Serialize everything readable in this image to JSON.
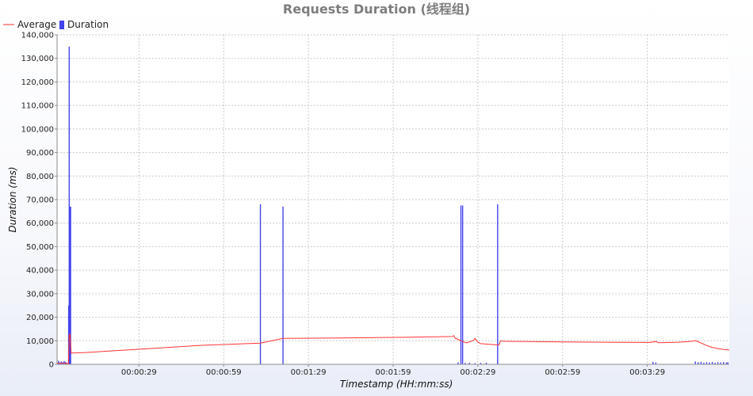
{
  "chart_data": {
    "type": "line",
    "title": "Requests Duration (线程组)",
    "xlabel": "Timestamp (HH:mm:ss)",
    "ylabel": "Duration (ms)",
    "x_ticks": [
      "00:00:29",
      "00:00:59",
      "00:01:29",
      "00:01:59",
      "00:02:29",
      "00:02:59",
      "00:03:29"
    ],
    "x_tick_seconds": [
      29,
      59,
      89,
      119,
      149,
      179,
      209
    ],
    "xlim_seconds": [
      0,
      238
    ],
    "ylim": [
      0,
      140000
    ],
    "y_ticks": [
      0,
      10000,
      20000,
      30000,
      40000,
      50000,
      60000,
      70000,
      80000,
      90000,
      100000,
      110000,
      120000,
      130000,
      140000
    ],
    "y_tick_labels": [
      "0",
      "10,000",
      "20,000",
      "30,000",
      "40,000",
      "50,000",
      "60,000",
      "70,000",
      "80,000",
      "90,000",
      "100,000",
      "110,000",
      "120,000",
      "130,000",
      "140,000"
    ],
    "grid": true,
    "legend_position": "top-left",
    "series": [
      {
        "name": "Average",
        "kind": "line",
        "color": "#ff3333",
        "points": [
          [
            0,
            500
          ],
          [
            3,
            400
          ],
          [
            4,
            300
          ],
          [
            4.3,
            12000
          ],
          [
            4.6,
            13000
          ],
          [
            5,
            4800
          ],
          [
            10,
            5000
          ],
          [
            30,
            6500
          ],
          [
            50,
            8000
          ],
          [
            72,
            9000
          ],
          [
            80,
            11000
          ],
          [
            100,
            11200
          ],
          [
            125,
            11500
          ],
          [
            140,
            11800
          ],
          [
            140.5,
            12200
          ],
          [
            141,
            11000
          ],
          [
            142,
            10600
          ],
          [
            143,
            10000
          ],
          [
            144,
            9500
          ],
          [
            145,
            9100
          ],
          [
            147.5,
            10200
          ],
          [
            148,
            11000
          ],
          [
            148.5,
            10200
          ],
          [
            149,
            9500
          ],
          [
            150,
            8800
          ],
          [
            155,
            8300
          ],
          [
            156.5,
            8200
          ],
          [
            157,
            10000
          ],
          [
            158,
            9800
          ],
          [
            180,
            9500
          ],
          [
            210,
            9300
          ],
          [
            212,
            9700
          ],
          [
            213,
            9200
          ],
          [
            220,
            9400
          ],
          [
            225,
            9800
          ],
          [
            226,
            10100
          ],
          [
            228,
            9100
          ],
          [
            230,
            8000
          ],
          [
            232,
            7200
          ],
          [
            234,
            6700
          ],
          [
            236,
            6300
          ],
          [
            238,
            6100
          ]
        ]
      },
      {
        "name": "Duration",
        "kind": "spikes",
        "color": "#4444ee",
        "points": [
          [
            0.5,
            1500
          ],
          [
            1,
            800
          ],
          [
            1.5,
            1200
          ],
          [
            2,
            900
          ],
          [
            2.5,
            1400
          ],
          [
            3,
            1000
          ],
          [
            3.5,
            600
          ],
          [
            4.1,
            25000
          ],
          [
            4.3,
            135000
          ],
          [
            4.5,
            67000
          ],
          [
            4.8,
            67000
          ],
          [
            72,
            68000
          ],
          [
            80,
            67000
          ],
          [
            143,
            67500
          ],
          [
            143.6,
            67500
          ],
          [
            156,
            68000
          ],
          [
            142,
            800
          ],
          [
            144.5,
            600
          ],
          [
            146,
            700
          ],
          [
            148,
            500
          ],
          [
            150,
            600
          ],
          [
            152,
            700
          ],
          [
            211,
            1000
          ],
          [
            212,
            800
          ],
          [
            226,
            1200
          ],
          [
            227,
            900
          ],
          [
            228,
            1100
          ],
          [
            229,
            700
          ],
          [
            230,
            900
          ],
          [
            231,
            800
          ],
          [
            232,
            1000
          ],
          [
            233,
            700
          ],
          [
            234,
            900
          ],
          [
            235,
            800
          ],
          [
            236,
            1000
          ],
          [
            237,
            700
          ],
          [
            237.5,
            900
          ]
        ]
      }
    ]
  }
}
